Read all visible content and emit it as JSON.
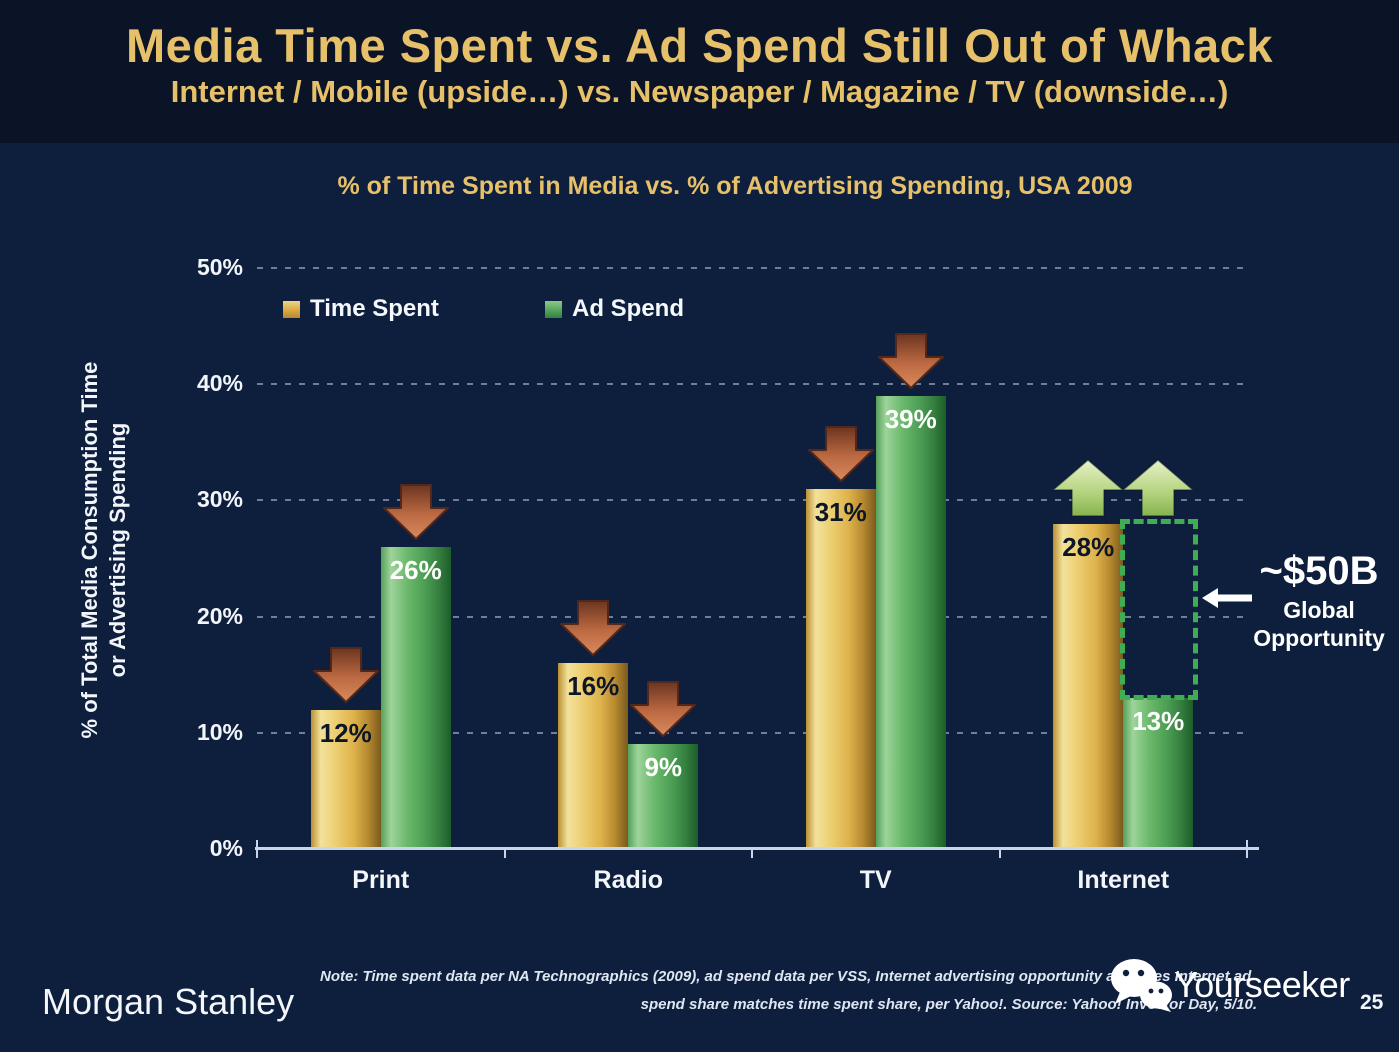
{
  "slide": {
    "title": "Media Time Spent vs. Ad Spend Still Out of Whack",
    "subtitle": "Internet / Mobile (upside…) vs. Newspaper / Magazine / TV (downside…)"
  },
  "chart_data": {
    "type": "bar",
    "title": "% of Time Spent in Media vs. % of Advertising Spending, USA 2009",
    "categories": [
      "Print",
      "Radio",
      "TV",
      "Internet"
    ],
    "series": [
      {
        "name": "Time Spent",
        "color": "#dcb14a",
        "values": [
          12,
          16,
          31,
          28
        ]
      },
      {
        "name": "Ad Spend",
        "color": "#4d9f55",
        "values": [
          26,
          9,
          39,
          13
        ]
      }
    ],
    "value_suffix": "%",
    "ylabel_lines": [
      "% of Total Media Consumption Time",
      "or Advertising Spending"
    ],
    "yticks": [
      {
        "value": 0,
        "label": "0%"
      },
      {
        "value": 10,
        "label": "10%"
      },
      {
        "value": 20,
        "label": "20%"
      },
      {
        "value": 30,
        "label": "30%"
      },
      {
        "value": 40,
        "label": "40%"
      },
      {
        "value": 50,
        "label": "50%"
      }
    ],
    "ylim": [
      0,
      50
    ],
    "grid": "dotted-horizontal",
    "legend_position": "top-left-inside",
    "annotations": {
      "trend_arrows": [
        [
          "down",
          "down"
        ],
        [
          "down",
          "down"
        ],
        [
          "down",
          "down"
        ],
        [
          "up",
          "up"
        ]
      ],
      "gap_box": {
        "category": "Internet",
        "category_index": 3,
        "series_index": 1,
        "from_value": 13,
        "to_value": 28,
        "color": "#3fae52"
      },
      "opportunity": {
        "value": "~$50B",
        "label_line1": "Global",
        "label_line2": "Opportunity"
      }
    }
  },
  "footer": {
    "brand": "Morgan Stanley",
    "note_line1": "Note: Time spent data per NA Technographics (2009), ad spend data per VSS, Internet advertising opportunity assumes Internet ad",
    "note_line2": "spend share matches time spent share, per Yahoo!. Source: Yahoo! Investor Day, 5/10.",
    "page_number": "25"
  },
  "watermark": {
    "text": "Yourseeker",
    "icon": "wechat-icon"
  },
  "colors": {
    "background": "#0e1f3d",
    "header_band": "#0a1426",
    "gold_text": "#e7c06a",
    "bar_gold": "#dcb14a",
    "bar_green": "#4d9f55",
    "arrow_down": "#c9714a",
    "arrow_up": "#a7cc70",
    "gap_dotted": "#3fae52",
    "axis": "#c9d6ea",
    "text_light": "#f2f5fa"
  }
}
